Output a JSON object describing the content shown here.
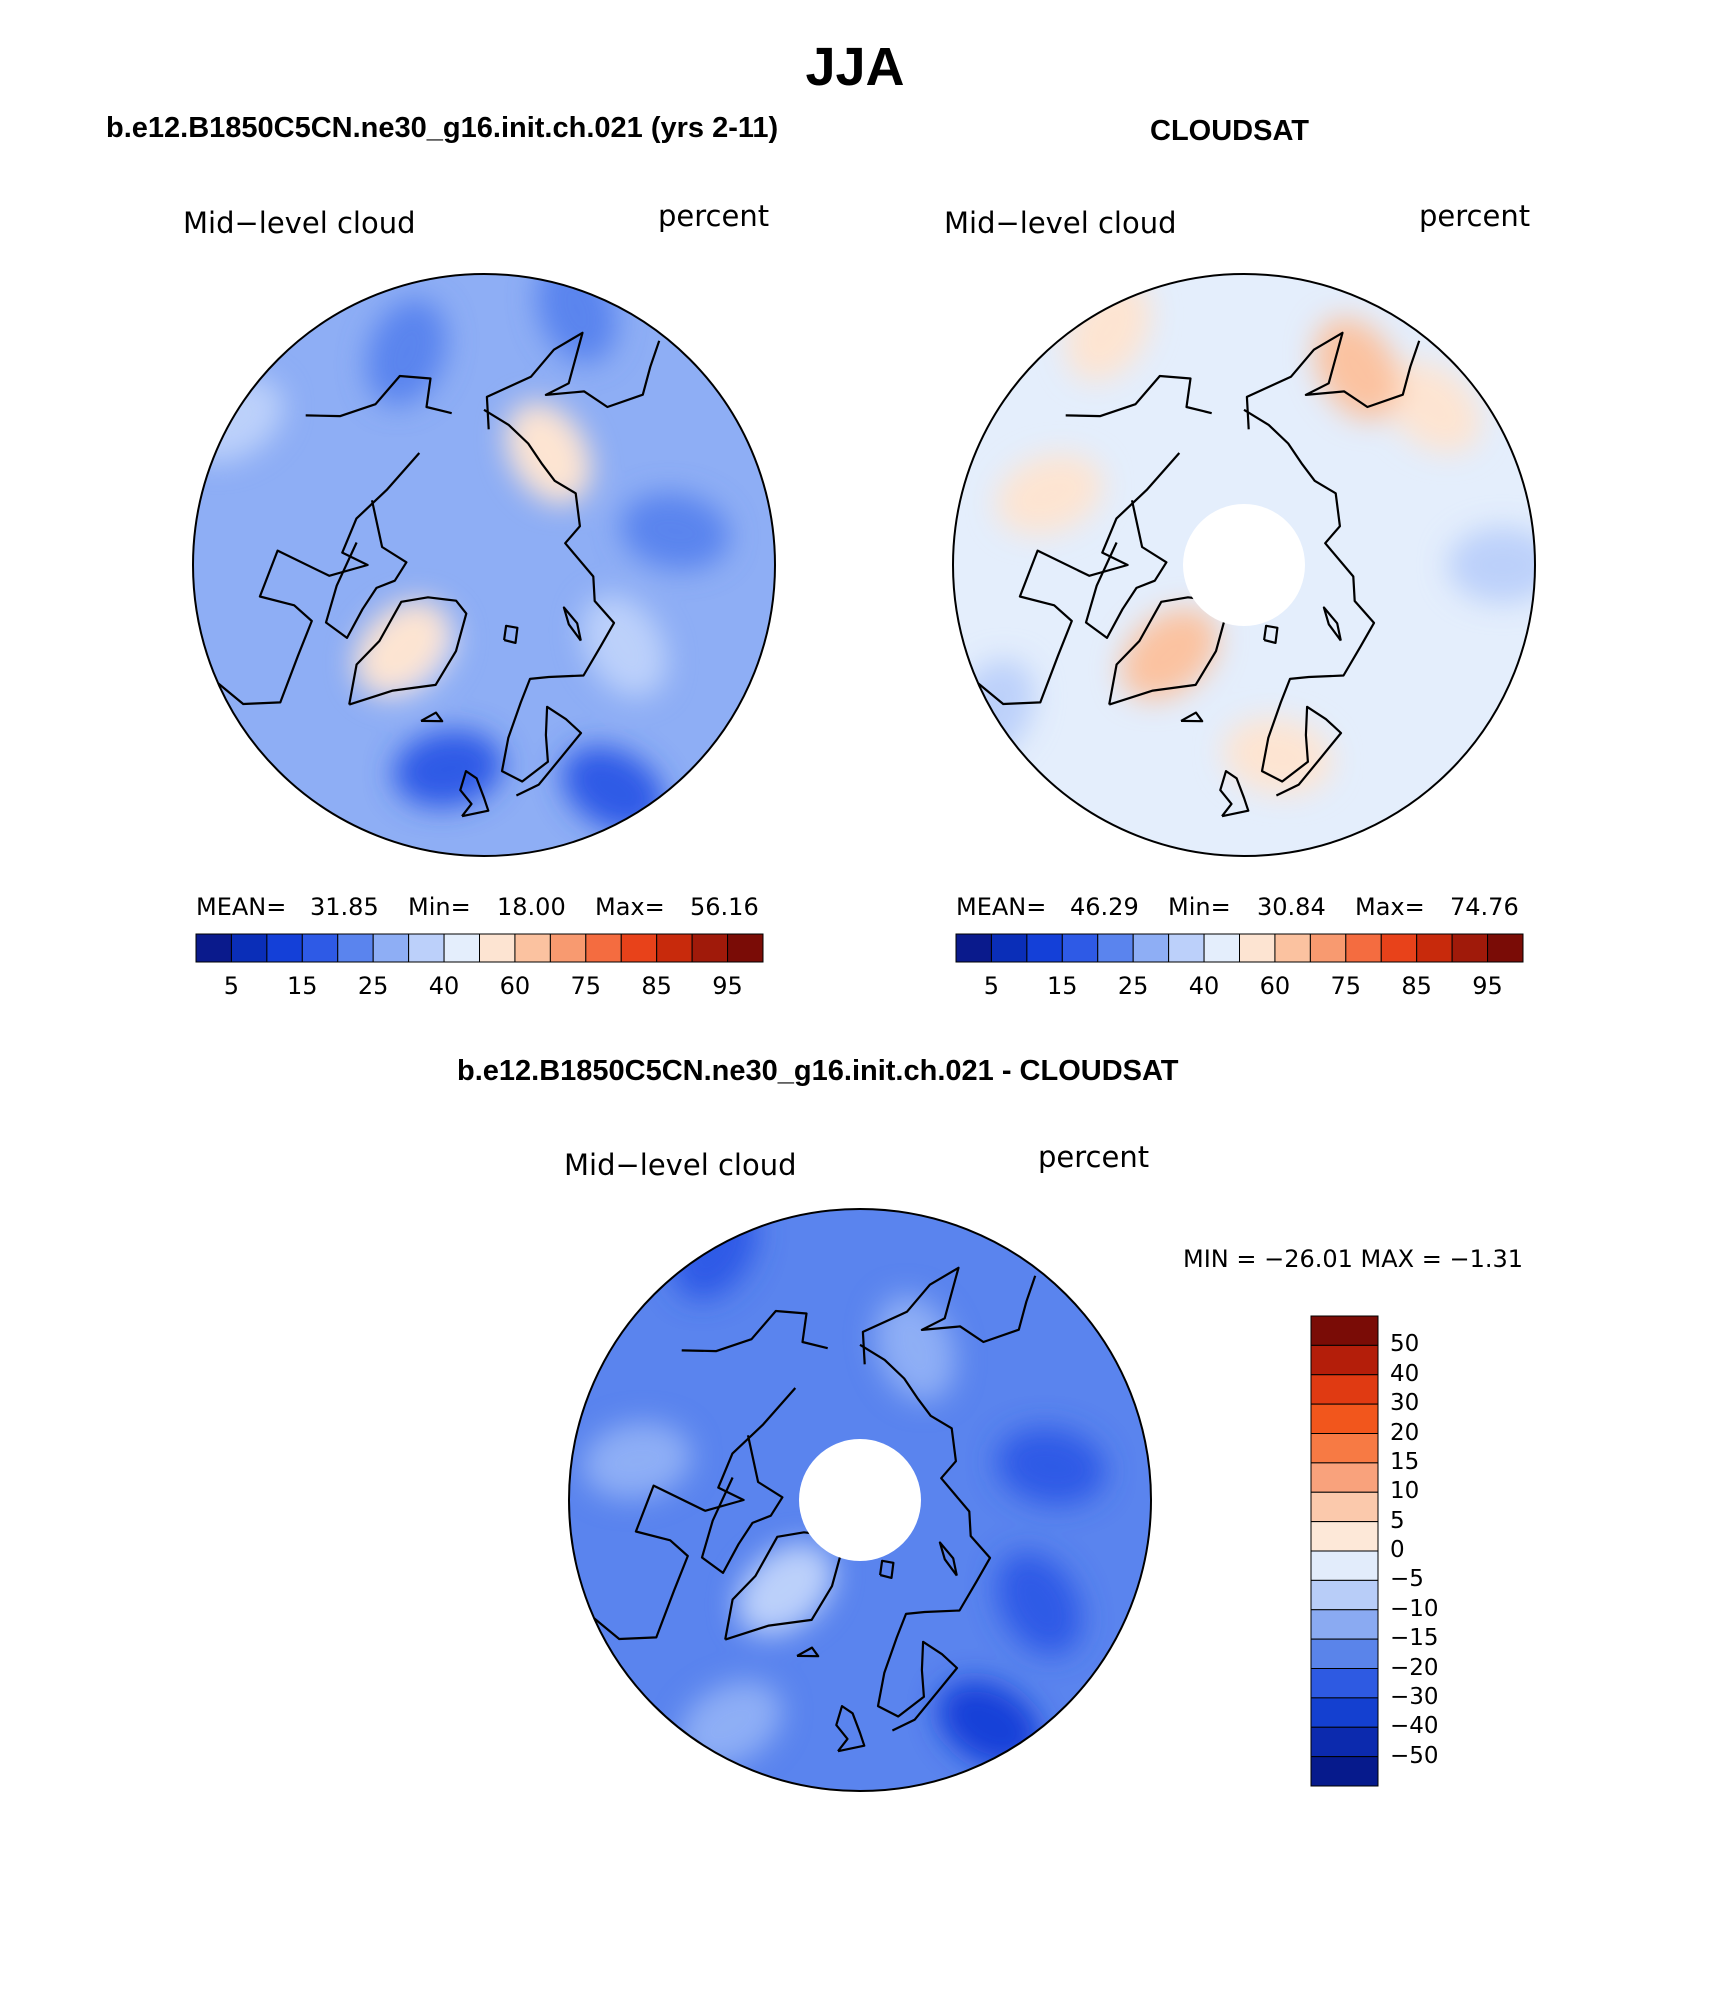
{
  "figure": {
    "season": "JJA",
    "panels": [
      {
        "title": "b.e12.B1850C5CN.ne30_g16.init.ch.021 (yrs 2-11)",
        "variable": "Mid−level cloud",
        "units": "percent",
        "mean_label": "MEAN=",
        "mean_value": "31.85",
        "min_label": "Min=",
        "min_value": "18.00",
        "max_label": "Max=",
        "max_value": "56.16"
      },
      {
        "title": "CLOUDSAT",
        "variable": "Mid−level cloud",
        "units": "percent",
        "mean_label": "MEAN=",
        "mean_value": "46.29",
        "min_label": "Min=",
        "min_value": "30.84",
        "max_label": "Max=",
        "max_value": "74.76"
      },
      {
        "title": "b.e12.B1850C5CN.ne30_g16.init.ch.021 - CLOUDSAT",
        "variable": "Mid−level cloud",
        "units": "percent",
        "minmax_text": "MIN = −26.01 MAX =  −1.31"
      }
    ],
    "horizontal_colorbar": {
      "tick_labels": [
        "5",
        "15",
        "25",
        "40",
        "60",
        "75",
        "85",
        "95"
      ],
      "colors": [
        "#0a1a8c",
        "#0a2eb8",
        "#1440d8",
        "#2e5ae6",
        "#5a84ee",
        "#8eaef5",
        "#bcd0fa",
        "#e4eefc",
        "#fde4d2",
        "#fbc2a0",
        "#f89a70",
        "#f46c40",
        "#e8421a",
        "#c82a0c",
        "#a01a0a",
        "#7a0c06"
      ]
    },
    "vertical_colorbar": {
      "tick_labels": [
        "50",
        "40",
        "30",
        "20",
        "15",
        "10",
        "5",
        "0",
        "−5",
        "−10",
        "−15",
        "−20",
        "−30",
        "−40",
        "−50"
      ],
      "colors": [
        "#7a0c06",
        "#b41e0a",
        "#e03a12",
        "#f2561c",
        "#f77a44",
        "#f9a27c",
        "#fbc9ac",
        "#fde8d8",
        "#e2ecfb",
        "#b8cdf8",
        "#8aaaf2",
        "#5a84ea",
        "#2e5ae2",
        "#1440d0",
        "#0c2aae",
        "#061a8c"
      ]
    },
    "maps": [
      {
        "name": "model",
        "base_color": "#8eaef5",
        "polar_hole": false,
        "patches": [
          {
            "lat": 72,
            "lon": -40,
            "value": 30,
            "color": "#bcd0fa"
          },
          {
            "lat": 60,
            "lon": 100,
            "value": 20,
            "color": "#5a84ee"
          },
          {
            "lat": 55,
            "lon": -160,
            "value": 20,
            "color": "#5a84ee"
          },
          {
            "lat": 65,
            "lon": 60,
            "value": 35,
            "color": "#bcd0fa"
          },
          {
            "lat": 45,
            "lon": -120,
            "value": 35,
            "color": "#bcd0fa"
          },
          {
            "lat": 50,
            "lon": 30,
            "value": 18,
            "color": "#2e5ae6"
          },
          {
            "lat": 58,
            "lon": -10,
            "value": 18,
            "color": "#2e5ae6"
          },
          {
            "lat": 48,
            "lon": 160,
            "value": 25,
            "color": "#5a84ee"
          },
          {
            "lat": 70,
            "lon": 150,
            "value": 55,
            "color": "#fde4d2"
          },
          {
            "lat": 72,
            "lon": -45,
            "value": 55,
            "color": "#fde4d2"
          }
        ]
      },
      {
        "name": "cloudsat",
        "base_color": "#e4eefc",
        "polar_hole": true,
        "patches": [
          {
            "lat": 52,
            "lon": 130,
            "value": 55,
            "color": "#fde4d2"
          },
          {
            "lat": 55,
            "lon": 150,
            "value": 60,
            "color": "#fbc2a0"
          },
          {
            "lat": 72,
            "lon": -40,
            "value": 60,
            "color": "#fbc2a0"
          },
          {
            "lat": 48,
            "lon": -150,
            "value": 55,
            "color": "#fde4d2"
          },
          {
            "lat": 60,
            "lon": 10,
            "value": 55,
            "color": "#fde4d2"
          },
          {
            "lat": 45,
            "lon": -60,
            "value": 40,
            "color": "#bcd0fa"
          },
          {
            "lat": 50,
            "lon": 90,
            "value": 40,
            "color": "#bcd0fa"
          },
          {
            "lat": 58,
            "lon": -110,
            "value": 55,
            "color": "#fde4d2"
          }
        ]
      },
      {
        "name": "difference",
        "base_color": "#5a84ee",
        "polar_hole": true,
        "patches": [
          {
            "lat": 72,
            "lon": -40,
            "value": -5,
            "color": "#bcd0fa"
          },
          {
            "lat": 50,
            "lon": 30,
            "value": -20,
            "color": "#1440d8"
          },
          {
            "lat": 60,
            "lon": 100,
            "value": -20,
            "color": "#2e5ae6"
          },
          {
            "lat": 45,
            "lon": -150,
            "value": -20,
            "color": "#2e5ae6"
          },
          {
            "lat": 55,
            "lon": -100,
            "value": -10,
            "color": "#8eaef5"
          },
          {
            "lat": 65,
            "lon": 160,
            "value": -10,
            "color": "#8eaef5"
          },
          {
            "lat": 50,
            "lon": -30,
            "value": -10,
            "color": "#8eaef5"
          },
          {
            "lat": 58,
            "lon": 60,
            "value": -20,
            "color": "#2e5ae6"
          }
        ]
      }
    ]
  }
}
